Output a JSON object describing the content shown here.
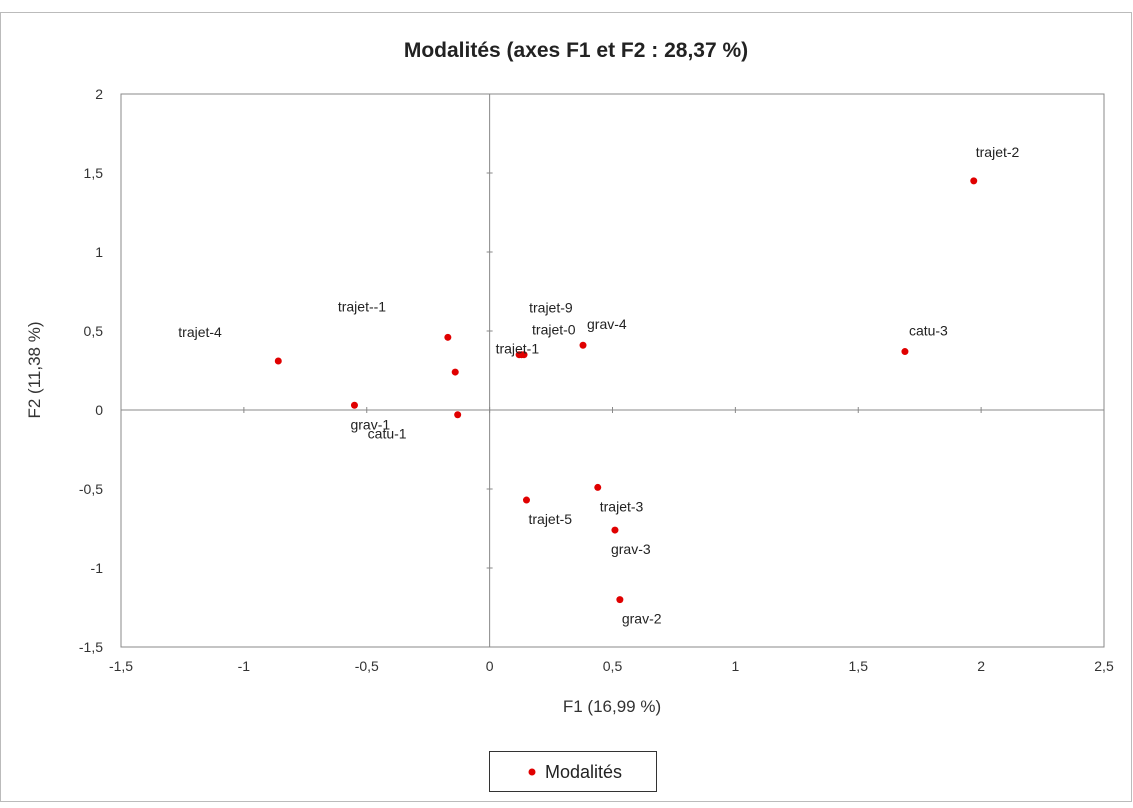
{
  "colors": {
    "marker": "#e00000",
    "axis": "#888888",
    "text": "#222222",
    "frame": "#bbbbbb"
  },
  "chart_data": {
    "type": "scatter",
    "title": "Modalités (axes F1 et F2 : 28,37 %)",
    "xlabel": "F1 (16,99 %)",
    "ylabel": "F2 (11,38 %)",
    "xlim": [
      -1.5,
      2.5
    ],
    "ylim": [
      -1.5,
      2
    ],
    "x_ticks": [
      "-1,5",
      "-1",
      "-0,5",
      "0",
      "0,5",
      "1",
      "1,5",
      "2",
      "2,5"
    ],
    "y_ticks": [
      "-1,5",
      "-1",
      "-0,5",
      "0",
      "0,5",
      "1",
      "1,5",
      "2"
    ],
    "grid": false,
    "legend": "bottom",
    "series": [
      {
        "name": "Modalités",
        "points": [
          {
            "label": "trajet-4",
            "x": -0.86,
            "y": 0.31
          },
          {
            "label": "grav-1",
            "x": -0.55,
            "y": 0.03
          },
          {
            "label": "trajet--1",
            "x": -0.17,
            "y": 0.46
          },
          {
            "label": "",
            "x": -0.14,
            "y": 0.24
          },
          {
            "label": "catu-1",
            "x": -0.13,
            "y": -0.03
          },
          {
            "label": "trajet-9",
            "x": 0.12,
            "y": 0.35
          },
          {
            "label": "trajet-0",
            "x": 0.14,
            "y": 0.35
          },
          {
            "label": "trajet-1",
            "x": 0.13,
            "y": 0.35
          },
          {
            "label": "grav-4",
            "x": 0.38,
            "y": 0.41
          },
          {
            "label": "trajet-5",
            "x": 0.15,
            "y": -0.57
          },
          {
            "label": "trajet-3",
            "x": 0.44,
            "y": -0.49
          },
          {
            "label": "grav-3",
            "x": 0.51,
            "y": -0.76
          },
          {
            "label": "grav-2",
            "x": 0.53,
            "y": -1.2
          },
          {
            "label": "catu-3",
            "x": 1.69,
            "y": 0.37
          },
          {
            "label": "trajet-2",
            "x": 1.97,
            "y": 1.45
          }
        ]
      }
    ]
  }
}
